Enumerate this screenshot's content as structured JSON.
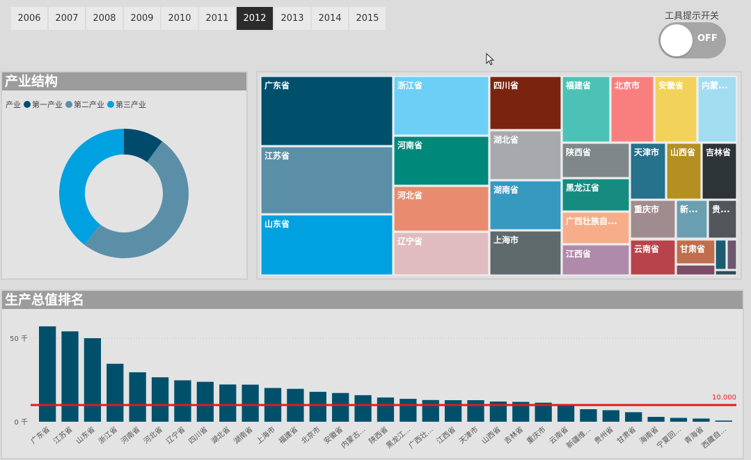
{
  "slicer": {
    "years": [
      "2006",
      "2007",
      "2008",
      "2009",
      "2010",
      "2011",
      "2012",
      "2013",
      "2014",
      "2015"
    ],
    "selected": "2012"
  },
  "toggle": {
    "label": "工具提示开关",
    "state": "OFF"
  },
  "donut": {
    "title": "产业结构",
    "legend_title": "产业",
    "chart_data": {
      "type": "pie",
      "variant": "donut",
      "title": "产业结构",
      "legend_title": "产业",
      "series": [
        {
          "name": "第一产业",
          "value": 10.1,
          "color": "#004b6b"
        },
        {
          "name": "第二产业",
          "value": 50.3,
          "color": "#5b8fa8"
        },
        {
          "name": "第三产业",
          "value": 39.6,
          "color": "#00a1e0"
        }
      ]
    }
  },
  "treemap": {
    "chart_data": {
      "type": "treemap",
      "items": [
        {
          "name": "广东省",
          "color": "#00506c"
        },
        {
          "name": "江苏省",
          "color": "#5b8fa8"
        },
        {
          "name": "山东省",
          "color": "#00a1e0"
        },
        {
          "name": "浙江省",
          "color": "#6ccff6"
        },
        {
          "name": "河南省",
          "color": "#00897b"
        },
        {
          "name": "河北省",
          "color": "#e88b6f"
        },
        {
          "name": "辽宁省",
          "color": "#e0bcc0"
        },
        {
          "name": "四川省",
          "color": "#7a2410"
        },
        {
          "name": "湖北省",
          "color": "#a7a9ac"
        },
        {
          "name": "湖南省",
          "color": "#3599c0"
        },
        {
          "name": "上海市",
          "color": "#5f6a6d"
        },
        {
          "name": "福建省",
          "color": "#4cc2b6"
        },
        {
          "name": "北京市",
          "color": "#f97f7f"
        },
        {
          "name": "安徽省",
          "color": "#f2d25a"
        },
        {
          "name": "内蒙...",
          "color": "#a2dcf0"
        },
        {
          "name": "陕西省",
          "color": "#7f8789"
        },
        {
          "name": "天津市",
          "color": "#26718c"
        },
        {
          "name": "山西省",
          "color": "#b39021"
        },
        {
          "name": "吉林省",
          "color": "#2c3438"
        },
        {
          "name": "黑龙江省",
          "color": "#168b80"
        },
        {
          "name": "重庆市",
          "color": "#a08c8f"
        },
        {
          "name": "新...",
          "color": "#6a9fb1"
        },
        {
          "name": "贵...",
          "color": "#50565a"
        },
        {
          "name": "广西壮族自...",
          "color": "#f7ad8a"
        },
        {
          "name": "江西省",
          "color": "#b08aab"
        },
        {
          "name": "云南省",
          "color": "#b8444b"
        },
        {
          "name": "甘肃省",
          "color": "#bf6f4e"
        },
        {
          "name": "",
          "color": "#1d5b71"
        },
        {
          "name": "",
          "color": "#6d5870"
        },
        {
          "name": "",
          "color": "#7d4d65"
        },
        {
          "name": "",
          "color": "#2c4b57"
        }
      ]
    }
  },
  "bar": {
    "title": "生产总值排名",
    "chart_data": {
      "type": "bar",
      "title": "生产总值排名",
      "categories": [
        "广东省",
        "江苏省",
        "山东省",
        "浙江省",
        "河南省",
        "河北省",
        "辽宁省",
        "四川省",
        "湖北省",
        "湖南省",
        "上海市",
        "福建省",
        "北京市",
        "安徽省",
        "内蒙古...",
        "陕西省",
        "黑龙江...",
        "广西壮...",
        "江西省",
        "天津市",
        "山西省",
        "吉林省",
        "重庆市",
        "云南省",
        "新疆维...",
        "贵州省",
        "甘肃省",
        "海南省",
        "宁夏回...",
        "青海省",
        "西藏自..."
      ],
      "values": [
        57.1,
        54.1,
        50.0,
        34.7,
        29.6,
        26.6,
        24.8,
        23.9,
        22.3,
        22.2,
        20.2,
        19.7,
        17.9,
        17.2,
        15.9,
        14.5,
        13.7,
        13.0,
        12.9,
        12.9,
        12.1,
        11.9,
        11.4,
        10.3,
        7.5,
        6.9,
        5.7,
        2.9,
        2.3,
        1.9,
        0.7
      ],
      "yticks": [
        0,
        50
      ],
      "ytick_labels": [
        "0 千",
        "50 千"
      ],
      "ylim": [
        0,
        60
      ],
      "reference_line": {
        "value": 10,
        "label": "10.000",
        "color": "#e31b1b"
      },
      "bar_color": "#00506c"
    }
  }
}
